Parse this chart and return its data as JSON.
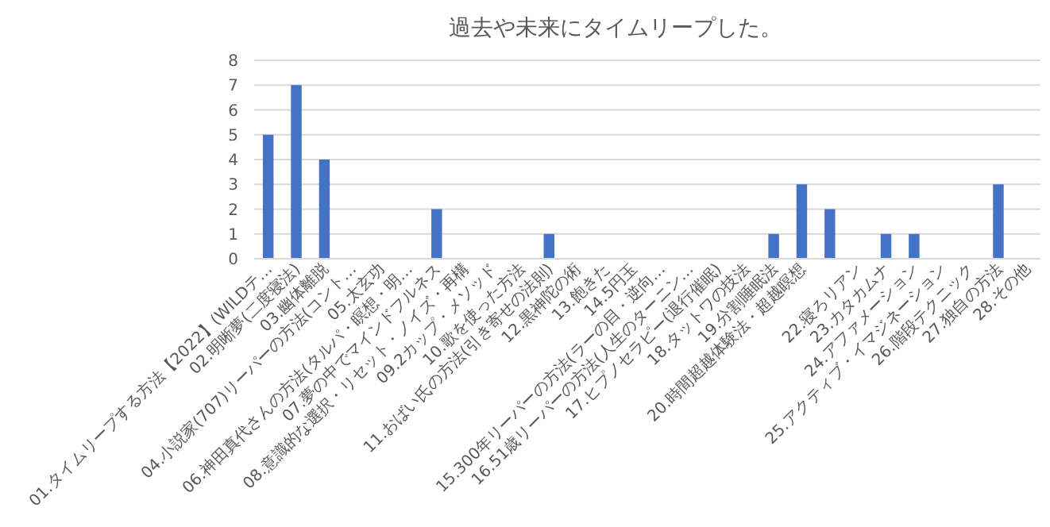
{
  "chart_data": {
    "type": "bar",
    "title": "過去や未来にタイムリープした。",
    "categories": [
      "01.タイムリープする方法【2022】(WILDテ…",
      "02.明晰夢(二度寝法)",
      "03.幽体離脱",
      "04.小説家(707)リーパーの方法(コント…",
      "05.太玄功",
      "06.神田真代さんの方法(タルパ・瞑想・明…",
      "07.夢の中でマインドフルネス",
      "08.意識的な選択・リセット・ノイズ・再構",
      "09.2カップ・メソッド",
      "10.歌を使った方法",
      "11.おばい氏の方法(引き寄せの法則)",
      "12.黒神陀の術",
      "13.飽きた",
      "14.5円玉",
      "15.300年リーパーの方法(ラーの目・逆向…",
      "16.51歳リーパーの方法(人生のターニン…",
      "17.ヒプノセラピー(退行催眠)",
      "18.タットワの技法",
      "19.分割睡眠法",
      "20.時間超越体験法・超越瞑想",
      null,
      "22.寝ろリアン",
      "23.カタカムナ",
      "24.アファメーション",
      "25.アクティブ・イマジネーション",
      "26.階段テクニック",
      "27.独自の方法",
      "28.その他"
    ],
    "values": [
      5,
      7,
      4,
      0,
      0,
      0,
      2,
      0,
      0,
      0,
      1,
      0,
      0,
      0,
      0,
      0,
      0,
      0,
      1,
      3,
      2,
      0,
      1,
      1,
      0,
      0,
      3,
      0
    ],
    "color": "#4472c4",
    "ylim": [
      0,
      8
    ],
    "yticks": [
      0,
      1,
      2,
      3,
      4,
      5,
      6,
      7,
      8
    ],
    "grid": "y"
  }
}
